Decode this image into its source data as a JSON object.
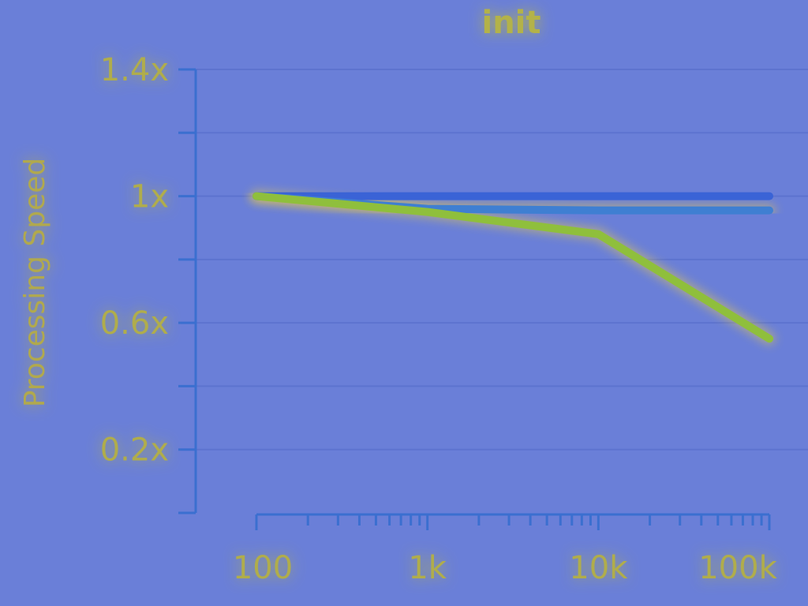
{
  "chart_data": {
    "type": "line",
    "title": "init",
    "xlabel": "",
    "ylabel": "Processing Speed",
    "x_scale": "log",
    "xlim": [
      100,
      100000
    ],
    "ylim": [
      0,
      1.4
    ],
    "x_ticks": [
      {
        "value": 100,
        "label": "100"
      },
      {
        "value": 1000,
        "label": "1k"
      },
      {
        "value": 10000,
        "label": "10k"
      },
      {
        "value": 100000,
        "label": "100k"
      }
    ],
    "y_ticks": [
      {
        "value": 1.4,
        "label": "1.4x"
      },
      {
        "value": 1.0,
        "label": "1x"
      },
      {
        "value": 0.6,
        "label": "0.6x"
      },
      {
        "value": 0.2,
        "label": "0.2x"
      }
    ],
    "y_minor_ticks": [
      1.2,
      0.8,
      0.4,
      0.0
    ],
    "grid": true,
    "series": [
      {
        "color": "#3a63d6",
        "x": [
          100,
          1000,
          10000,
          100000
        ],
        "y": [
          1.0,
          1.0,
          1.0,
          1.0
        ]
      },
      {
        "color": "#3f7fd2",
        "x": [
          100,
          1000,
          10000,
          100000
        ],
        "y": [
          1.0,
          0.96,
          0.955,
          0.955
        ]
      },
      {
        "color": "#8fbf3c",
        "x": [
          100,
          1000,
          10000,
          100000
        ],
        "y": [
          1.0,
          0.95,
          0.88,
          0.55
        ]
      }
    ]
  },
  "colors": {
    "background": "#6a7fd8",
    "axis": "#3b6fd0",
    "grid": "#5d73cf",
    "glow": "#f5d13a"
  }
}
